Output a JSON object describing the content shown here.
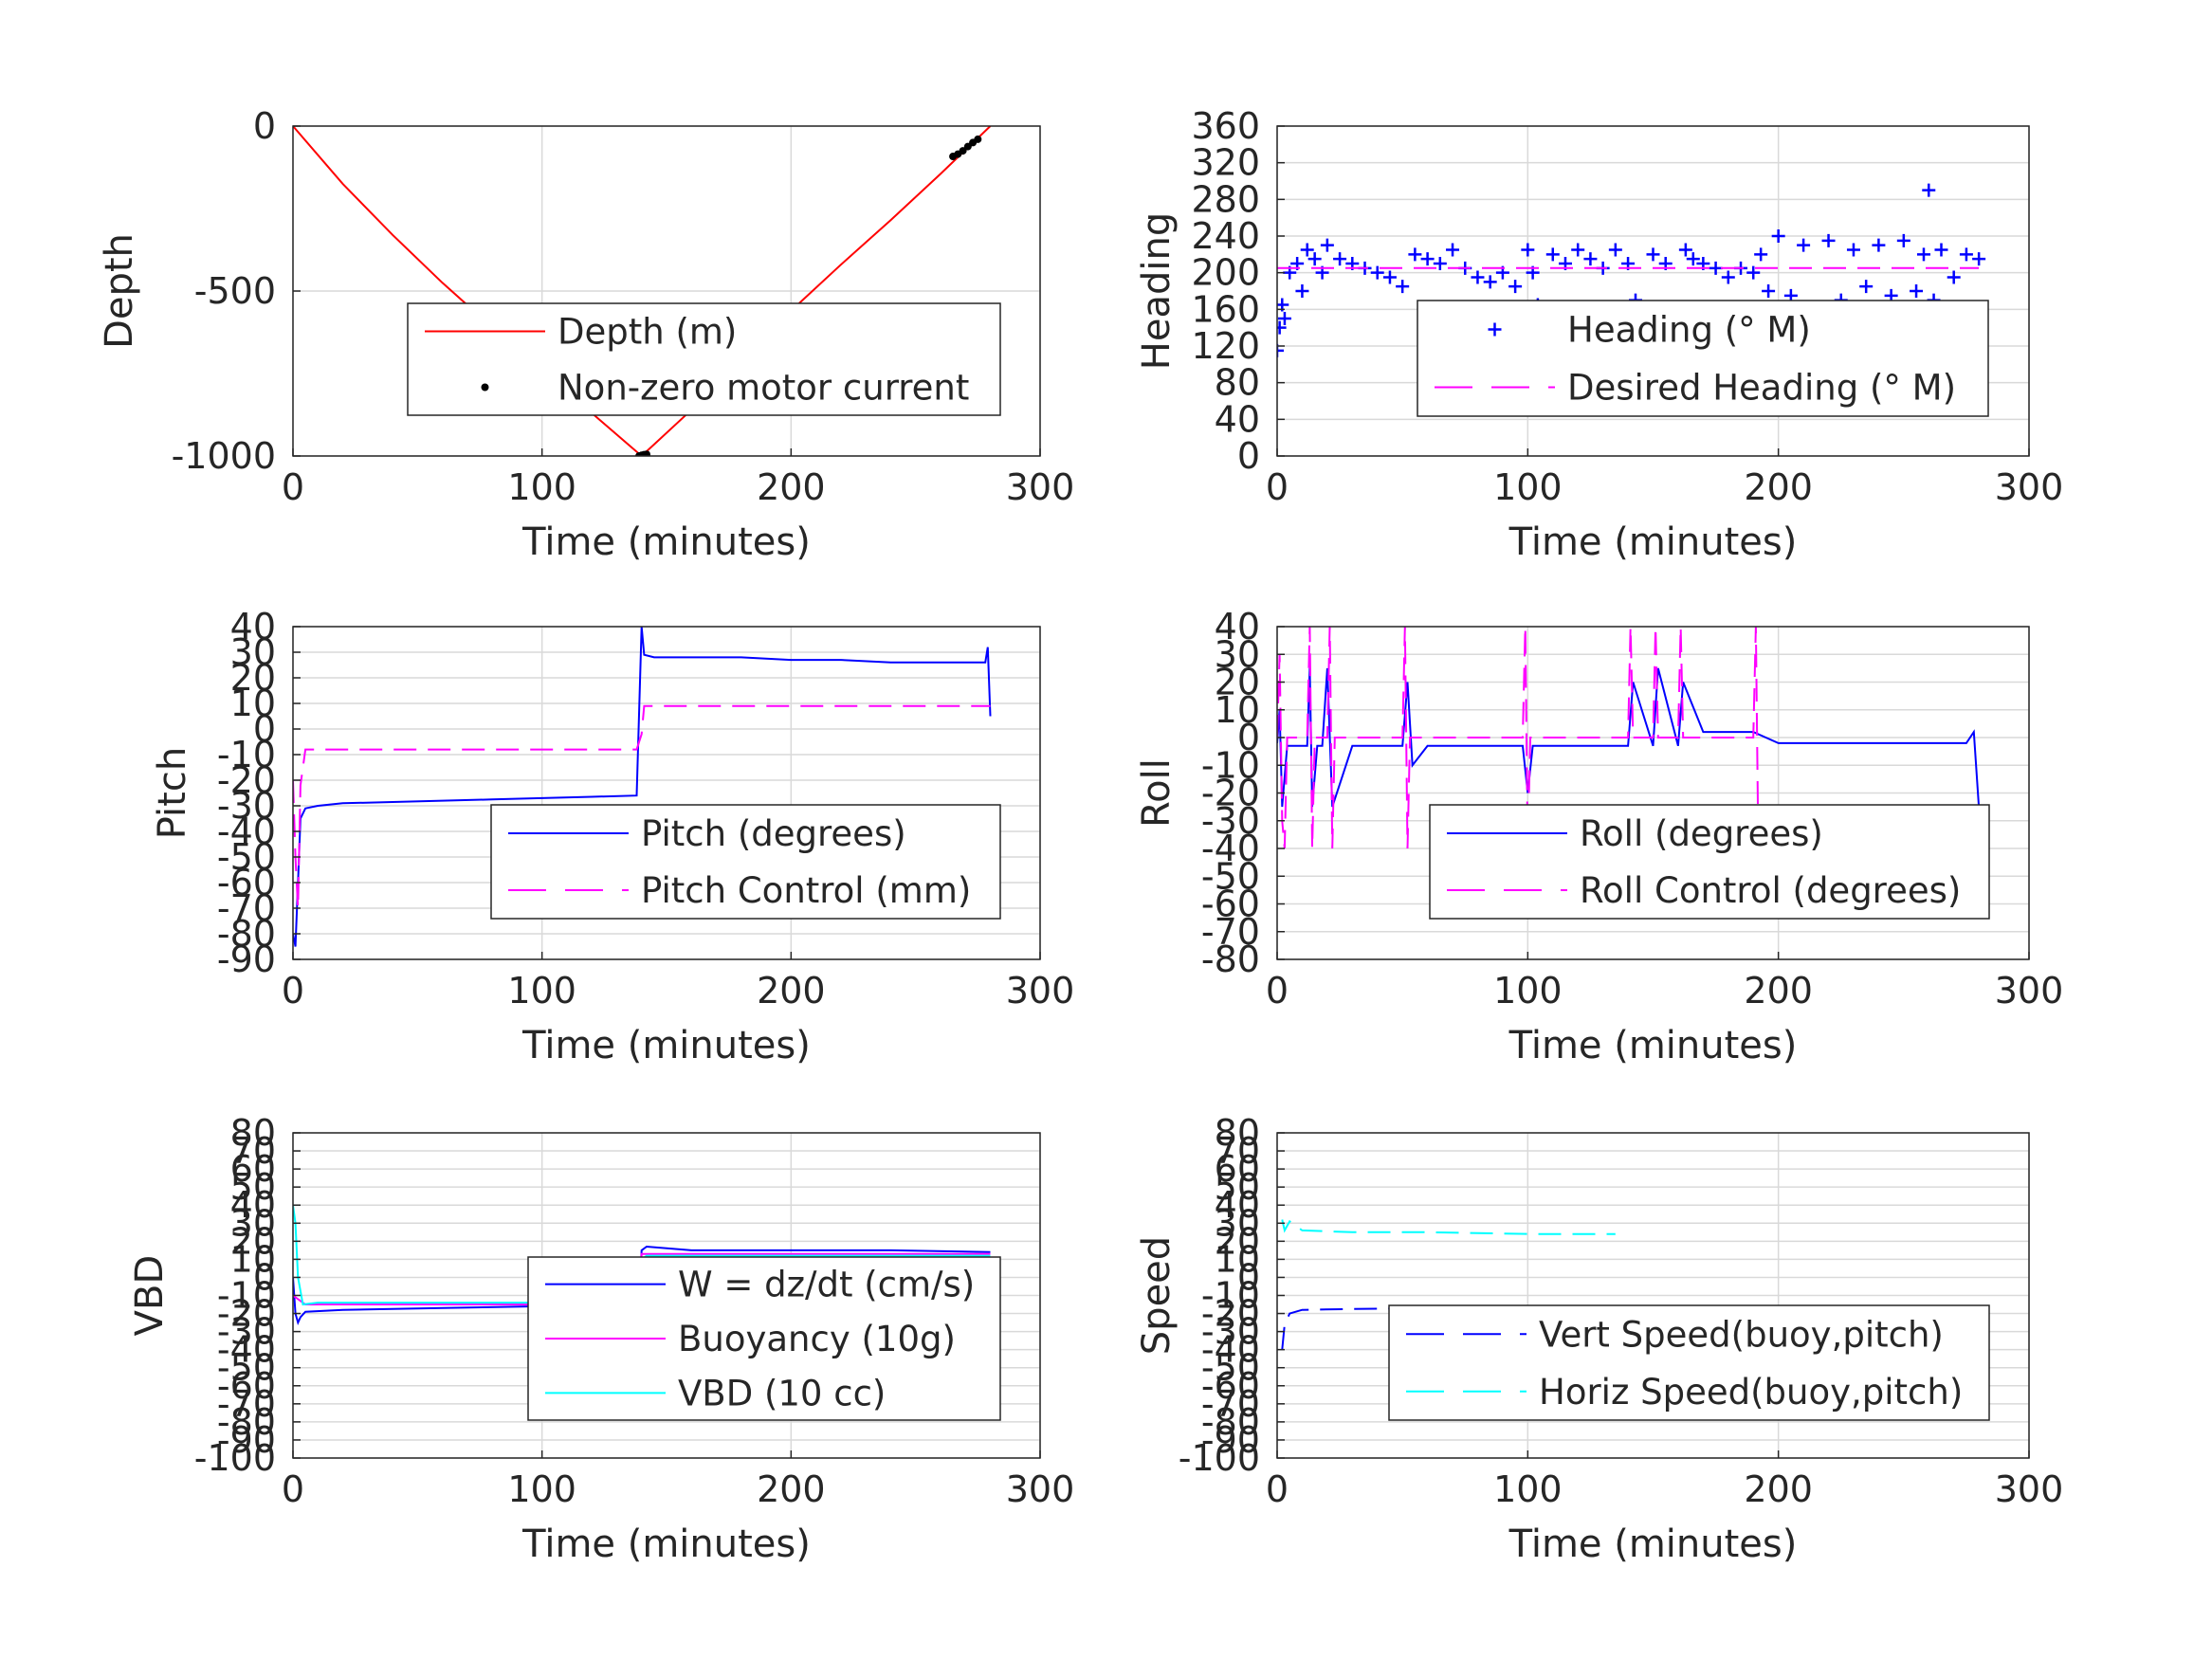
{
  "colors": {
    "depth": "#ff0000",
    "motor": "#000000",
    "blue": "#0000ff",
    "magenta": "#ff00ff",
    "cyan": "#00ffff",
    "grid": "#d9d9d9",
    "axis": "#262626"
  },
  "chart_data": [
    {
      "id": "depth",
      "type": "line",
      "xlabel": "Time (minutes)",
      "ylabel": "Depth",
      "xlim": [
        0,
        300
      ],
      "ylim": [
        -1000,
        0
      ],
      "xticks": [
        0,
        100,
        200,
        300
      ],
      "yticks": [
        0,
        -500,
        -1000
      ],
      "grid": true,
      "legend_placement": "center-right",
      "series": [
        {
          "name": "Depth (m)",
          "style": "solid",
          "color": "#ff0000",
          "x": [
            0,
            20,
            40,
            60,
            80,
            100,
            120,
            140,
            160,
            180,
            200,
            220,
            240,
            260,
            280
          ],
          "y": [
            0,
            -175,
            -330,
            -475,
            -610,
            -740,
            -870,
            -1000,
            -860,
            -710,
            -560,
            -420,
            -285,
            -145,
            0
          ]
        },
        {
          "name": "Non-zero motor current",
          "style": "dots",
          "color": "#000000",
          "x": [
            139,
            140,
            141,
            142,
            265,
            267,
            269,
            271,
            273,
            275
          ],
          "y": [
            -1000,
            -998,
            -996,
            -995,
            -92,
            -85,
            -75,
            -62,
            -50,
            -40
          ]
        }
      ]
    },
    {
      "id": "heading",
      "type": "line",
      "xlabel": "Time (minutes)",
      "ylabel": "Heading",
      "xlim": [
        0,
        300
      ],
      "ylim": [
        0,
        360
      ],
      "xticks": [
        0,
        100,
        200,
        300
      ],
      "yticks": [
        0,
        40,
        80,
        120,
        160,
        200,
        240,
        280,
        320,
        360
      ],
      "grid": true,
      "legend_placement": "center-right",
      "series": [
        {
          "name": "Heading (° M)",
          "style": "plus",
          "color": "#0000ff",
          "x": [
            0,
            1,
            2,
            3,
            5,
            8,
            10,
            12,
            15,
            18,
            20,
            25,
            30,
            35,
            40,
            45,
            50,
            55,
            60,
            65,
            70,
            75,
            80,
            85,
            90,
            95,
            100,
            102,
            104,
            106,
            110,
            115,
            120,
            125,
            130,
            135,
            140,
            143,
            146,
            150,
            155,
            160,
            163,
            166,
            170,
            175,
            180,
            185,
            190,
            193,
            196,
            200,
            205,
            210,
            215,
            220,
            225,
            230,
            235,
            240,
            245,
            250,
            255,
            258,
            260,
            262,
            265,
            270,
            275,
            280
          ],
          "y": [
            115,
            140,
            165,
            150,
            200,
            210,
            180,
            225,
            215,
            200,
            230,
            215,
            210,
            205,
            200,
            195,
            185,
            220,
            215,
            210,
            225,
            205,
            195,
            190,
            200,
            185,
            225,
            200,
            165,
            150,
            220,
            210,
            225,
            215,
            205,
            225,
            210,
            170,
            150,
            220,
            210,
            160,
            225,
            215,
            210,
            205,
            195,
            205,
            200,
            220,
            180,
            240,
            175,
            230,
            160,
            235,
            170,
            225,
            185,
            230,
            175,
            235,
            180,
            220,
            290,
            170,
            225,
            195,
            220,
            215
          ]
        },
        {
          "name": "Desired Heading (° M)",
          "style": "dashed",
          "color": "#ff00ff",
          "x": [
            0,
            280
          ],
          "y": [
            205,
            205
          ]
        }
      ]
    },
    {
      "id": "pitch",
      "type": "line",
      "xlabel": "Time (minutes)",
      "ylabel": "Pitch",
      "xlim": [
        0,
        300
      ],
      "ylim": [
        -90,
        40
      ],
      "xticks": [
        0,
        100,
        200,
        300
      ],
      "yticks": [
        40,
        30,
        20,
        10,
        0,
        -10,
        -20,
        -30,
        -40,
        -50,
        -60,
        -70,
        -80,
        -90
      ],
      "grid": true,
      "legend_placement": "center-right",
      "series": [
        {
          "name": "Pitch (degrees)",
          "style": "solid",
          "color": "#0000ff",
          "x": [
            0,
            1,
            2,
            3,
            5,
            10,
            20,
            40,
            60,
            80,
            100,
            120,
            138,
            140,
            141,
            145,
            160,
            180,
            200,
            220,
            240,
            260,
            278,
            279,
            280
          ],
          "y": [
            -80,
            -85,
            -60,
            -35,
            -31,
            -30,
            -29,
            -28.5,
            -28,
            -27.5,
            -27,
            -26.5,
            -26,
            40,
            29,
            28,
            28,
            28,
            27,
            27,
            26,
            26,
            26,
            32,
            5
          ]
        },
        {
          "name": "Pitch Control (mm)",
          "style": "dashed",
          "color": "#ff00ff",
          "x": [
            0,
            1,
            2,
            3,
            5,
            50,
            100,
            138,
            140,
            141,
            200,
            280
          ],
          "y": [
            -20,
            -50,
            -70,
            -22,
            -8,
            -8,
            -8,
            -8,
            -2,
            9,
            9,
            9
          ]
        }
      ]
    },
    {
      "id": "roll",
      "type": "line",
      "xlabel": "Time (minutes)",
      "ylabel": "Roll",
      "xlim": [
        0,
        300
      ],
      "ylim": [
        -80,
        40
      ],
      "xticks": [
        0,
        100,
        200,
        300
      ],
      "yticks": [
        40,
        30,
        20,
        10,
        0,
        -10,
        -20,
        -30,
        -40,
        -50,
        -60,
        -70,
        -80
      ],
      "grid": true,
      "legend_placement": "bottom-right",
      "series": [
        {
          "name": "Roll (degrees)",
          "style": "solid",
          "color": "#0000ff",
          "x": [
            0,
            1,
            2,
            4,
            6,
            12,
            13,
            14,
            16,
            18,
            20,
            22,
            30,
            50,
            52,
            54,
            60,
            80,
            98,
            100,
            102,
            110,
            140,
            142,
            150,
            152,
            160,
            162,
            170,
            190,
            200,
            220,
            240,
            260,
            275,
            278,
            280
          ],
          "y": [
            -2,
            10,
            -25,
            -3,
            -3,
            -3,
            25,
            -25,
            -3,
            -3,
            25,
            -25,
            -3,
            -3,
            20,
            -10,
            -3,
            -3,
            -3,
            -20,
            -3,
            -3,
            -3,
            20,
            -3,
            25,
            -3,
            20,
            2,
            2,
            -2,
            -2,
            -2,
            -2,
            -2,
            2,
            -25
          ]
        },
        {
          "name": "Roll Control (degrees)",
          "style": "dashed",
          "color": "#ff00ff",
          "x": [
            0,
            1,
            2,
            3,
            4,
            12,
            13,
            14,
            15,
            16,
            20,
            21,
            22,
            23,
            24,
            50,
            51,
            52,
            53,
            54,
            98,
            99,
            100,
            101,
            102,
            140,
            141,
            142,
            150,
            151,
            152,
            160,
            161,
            162,
            190,
            191,
            192
          ],
          "y": [
            0,
            30,
            -30,
            -40,
            0,
            0,
            40,
            -40,
            0,
            0,
            0,
            40,
            -40,
            0,
            0,
            0,
            40,
            -40,
            0,
            0,
            0,
            40,
            -40,
            0,
            0,
            0,
            40,
            0,
            0,
            40,
            0,
            0,
            40,
            0,
            0,
            40,
            -40
          ]
        }
      ]
    },
    {
      "id": "vbd",
      "type": "line",
      "xlabel": "Time (minutes)",
      "ylabel": "VBD",
      "xlim": [
        0,
        300
      ],
      "ylim": [
        -100,
        80
      ],
      "xticks": [
        0,
        100,
        200,
        300
      ],
      "yticks": [
        80,
        70,
        60,
        50,
        40,
        30,
        20,
        10,
        0,
        -10,
        -20,
        -30,
        -40,
        -50,
        -60,
        -70,
        -80,
        -90,
        -100
      ],
      "grid": true,
      "legend_placement": "center-right",
      "series": [
        {
          "name": "W = dz/dt (cm/s)",
          "style": "solid",
          "color": "#0000ff",
          "x": [
            0,
            1,
            2,
            3,
            5,
            20,
            60,
            100,
            139,
            140,
            142,
            160,
            200,
            240,
            280
          ],
          "y": [
            0,
            -20,
            -25,
            -22,
            -19,
            -18,
            -17,
            -16,
            -16,
            15,
            17,
            15,
            15,
            15,
            14
          ]
        },
        {
          "name": "Buoyancy (10g)",
          "style": "solid",
          "color": "#ff00ff",
          "x": [
            0,
            5,
            100,
            139,
            140,
            280
          ],
          "y": [
            -10,
            -15,
            -15,
            -15,
            13,
            13
          ]
        },
        {
          "name": "VBD (10 cc)",
          "style": "solid",
          "color": "#00ffff",
          "x": [
            0,
            1,
            2,
            4,
            10,
            100,
            139,
            140,
            142,
            280
          ],
          "y": [
            40,
            30,
            0,
            -15,
            -14,
            -14,
            -14,
            10,
            12,
            12
          ]
        }
      ]
    },
    {
      "id": "speed",
      "type": "line",
      "xlabel": "Time (minutes)",
      "ylabel": "Speed",
      "xlim": [
        0,
        300
      ],
      "ylim": [
        -100,
        80
      ],
      "xticks": [
        0,
        100,
        200,
        300
      ],
      "yticks": [
        80,
        70,
        60,
        50,
        40,
        30,
        20,
        10,
        0,
        -10,
        -20,
        -30,
        -40,
        -50,
        -60,
        -70,
        -80,
        -90,
        -100
      ],
      "grid": true,
      "legend_placement": "bottom-right",
      "series": [
        {
          "name": "Vert Speed(buoy,pitch)",
          "style": "dashed",
          "color": "#0000ff",
          "x": [
            2,
            3,
            5,
            10,
            30,
            60,
            100,
            140
          ],
          "y": [
            -40,
            -26,
            -20,
            -18,
            -17.5,
            -17,
            -17,
            -16.5
          ]
        },
        {
          "name": "Horiz Speed(buoy,pitch)",
          "style": "dashed",
          "color": "#00ffff",
          "x": [
            2,
            3,
            5,
            10,
            30,
            60,
            100,
            135
          ],
          "y": [
            32,
            26,
            31,
            26,
            25,
            25,
            24,
            24
          ]
        }
      ]
    }
  ]
}
